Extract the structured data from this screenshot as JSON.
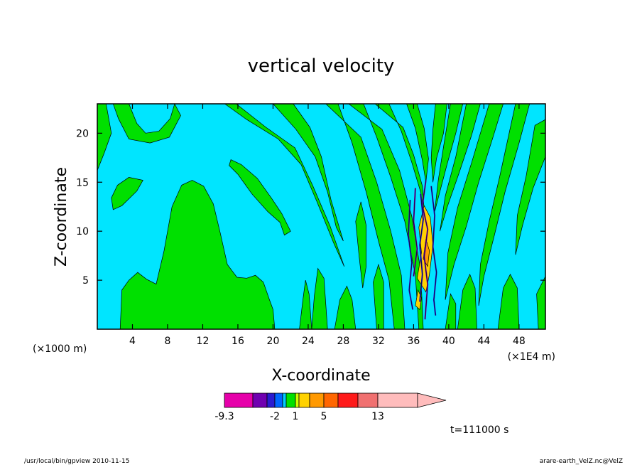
{
  "chart_data": {
    "type": "heatmap",
    "title": "vertical velocity",
    "xlabel": "X-coordinate",
    "ylabel": "Z-coordinate",
    "x_unit": "(×1000 m)",
    "x_scale_note": "(×1E4 m)",
    "x_ticks": [
      "4",
      "8",
      "12",
      "16",
      "20",
      "24",
      "28",
      "32",
      "36",
      "40",
      "44",
      "48"
    ],
    "y_ticks": [
      "5",
      "10",
      "15",
      "20"
    ],
    "xlim": [
      0,
      51
    ],
    "ylim": [
      0,
      23
    ],
    "time_label": "t=111000 s",
    "colorbar": {
      "labels": [
        "-9.3",
        "-2",
        "1",
        "5",
        "13"
      ],
      "colors": [
        "#e600aa",
        "#7000b0",
        "#2a1bd0",
        "#0066ff",
        "#00ccff",
        "#00e000",
        "#ccff00",
        "#ffd200",
        "#ff9900",
        "#ff6600",
        "#ff1a1a",
        "#f07070",
        "#ffbcbc"
      ]
    },
    "fields": {
      "background": "#00e5ff",
      "positive": "#00e000",
      "strong": [
        "#ffd200",
        "#ff9900"
      ],
      "negative": [
        "#2a1bd0",
        "#7000b0"
      ]
    },
    "footer_left": "/usr/local/bin/gpview  2010-11-15",
    "footer_right": "arare-earth_VelZ.nc@VelZ"
  }
}
